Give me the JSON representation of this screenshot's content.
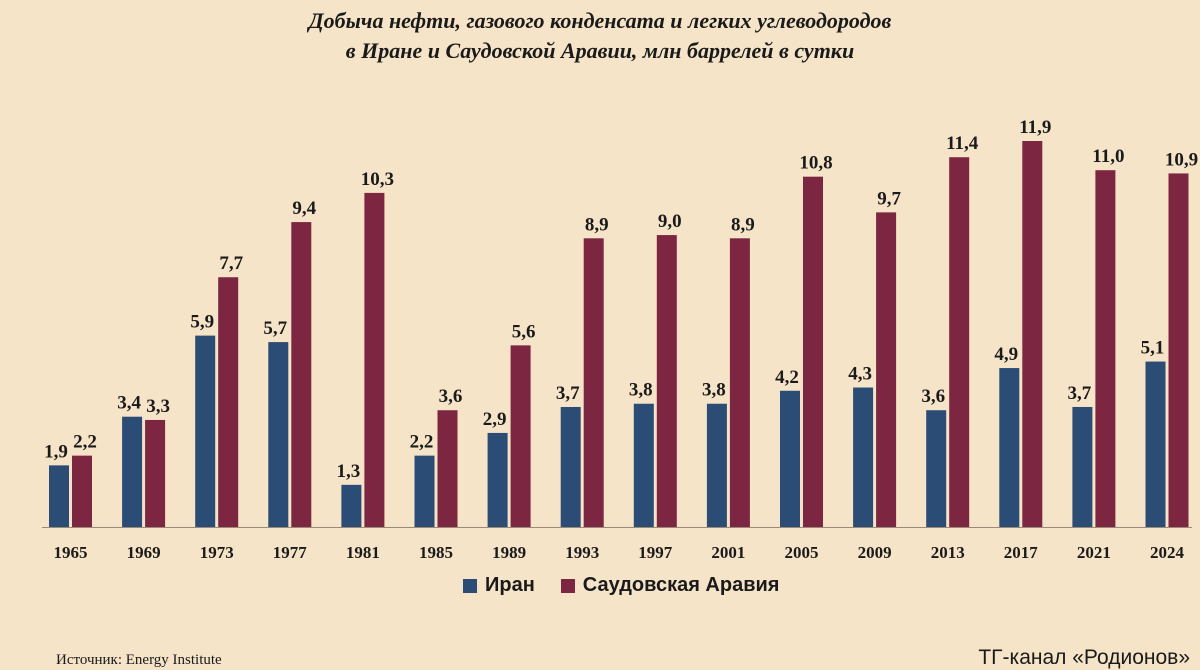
{
  "chart_data": {
    "type": "bar",
    "title": "Добыча нефти, газового конденсата и легких углеводородов",
    "subtitle": "в Иране и Саудовской Аравии, млн баррелей в сутки",
    "categories": [
      "1965",
      "1969",
      "1973",
      "1977",
      "1981",
      "1985",
      "1989",
      "1993",
      "1997",
      "2001",
      "2005",
      "2009",
      "2013",
      "2017",
      "2021",
      "2024"
    ],
    "series": [
      {
        "name": "Иран",
        "color": "#2b4c74",
        "values": [
          1.9,
          3.4,
          5.9,
          5.7,
          1.3,
          2.2,
          2.9,
          3.7,
          3.8,
          3.8,
          4.2,
          4.3,
          3.6,
          4.9,
          3.7,
          5.1
        ],
        "labels": [
          "1,9",
          "3,4",
          "5,9",
          "5,7",
          "1,3",
          "2,2",
          "2,9",
          "3,7",
          "3,8",
          "3,8",
          "4,2",
          "4,3",
          "3,6",
          "4,9",
          "3,7",
          "5,1"
        ]
      },
      {
        "name": "Саудовская Аравия",
        "color": "#7c2641",
        "values": [
          2.2,
          3.3,
          7.7,
          9.4,
          10.3,
          3.6,
          5.6,
          8.9,
          9.0,
          8.9,
          10.8,
          9.7,
          11.4,
          11.9,
          11.0,
          10.9
        ],
        "labels": [
          "2,2",
          "3,3",
          "7,7",
          "9,4",
          "10,3",
          "3,6",
          "5,6",
          "8,9",
          "9,0",
          "8,9",
          "10,8",
          "9,7",
          "11,4",
          "11,9",
          "11,0",
          "10,9"
        ]
      }
    ],
    "ylim": [
      0,
      12
    ],
    "grid": false,
    "legend": "bottom-center"
  },
  "footer": {
    "source": "Источник: Energy Institute",
    "brand": "ТГ-канал «Родионов»"
  }
}
